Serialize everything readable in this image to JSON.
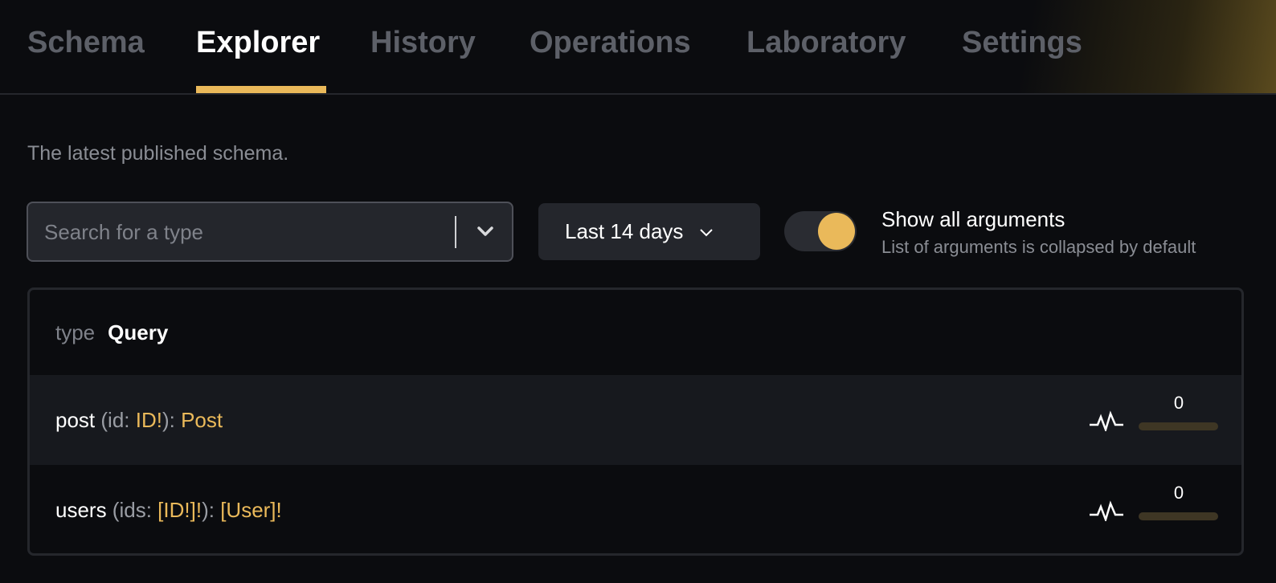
{
  "tabs": [
    {
      "label": "Schema"
    },
    {
      "label": "Explorer",
      "active": true
    },
    {
      "label": "History"
    },
    {
      "label": "Operations"
    },
    {
      "label": "Laboratory"
    },
    {
      "label": "Settings"
    }
  ],
  "subtitle": "The latest published schema.",
  "search": {
    "placeholder": "Search for a type",
    "value": ""
  },
  "date_range": {
    "selected": "Last 14 days"
  },
  "toggle": {
    "title": "Show all arguments",
    "description": "List of arguments is collapsed by default",
    "on": true
  },
  "type_block": {
    "keyword": "type",
    "name": "Query",
    "fields": [
      {
        "name": "post",
        "open": " (",
        "arg": "id",
        "colon": ": ",
        "arg_type": "ID!",
        "close": "): ",
        "return_type": "Post",
        "count": "0",
        "usage_fraction": 0
      },
      {
        "name": "users",
        "open": " (",
        "arg": "ids",
        "colon": ": ",
        "arg_type": "[ID!]!",
        "close": "): ",
        "return_type": "[User]!",
        "count": "0",
        "usage_fraction": 0
      }
    ]
  },
  "colors": {
    "accent": "#eab95a",
    "background": "#0b0c0f"
  }
}
